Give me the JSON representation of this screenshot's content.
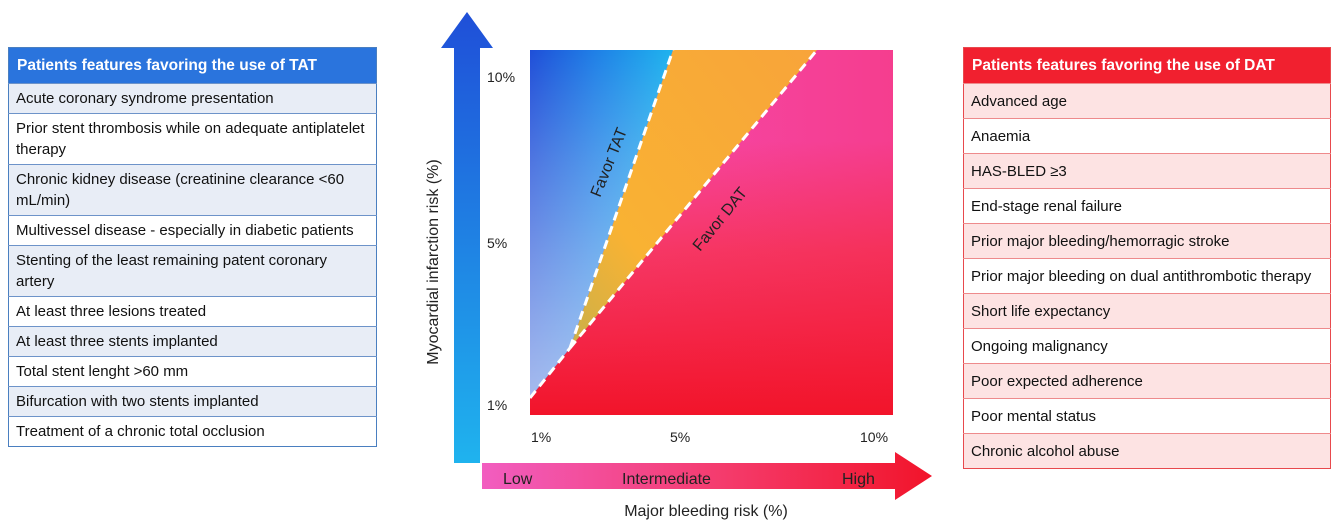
{
  "tat_panel": {
    "title": "Patients features favoring the use of TAT",
    "items": [
      "Acute coronary syndrome presentation",
      "Prior stent thrombosis while on adequate antiplatelet therapy",
      "Chronic kidney disease (creatinine clearance <60 mL/min)",
      "Multivessel disease - especially in diabetic patients",
      "Stenting of the least remaining patent coronary artery",
      "At least three lesions treated",
      "At least three stents implanted",
      "Total stent lenght >60 mm",
      "Bifurcation with two stents implanted",
      "Treatment of a chronic total occlusion"
    ]
  },
  "dat_panel": {
    "title": "Patients features favoring the use of DAT",
    "items": [
      "Advanced age",
      "Anaemia",
      "HAS-BLED ≥3",
      "End-stage renal failure",
      "Prior major bleeding/hemorragic stroke",
      "Prior major bleeding on dual antithrombotic therapy",
      "Short life expectancy",
      "Ongoing malignancy",
      "Poor expected adherence",
      "Poor mental status",
      "Chronic alcohol abuse"
    ]
  },
  "chart": {
    "y_axis_title": "Myocardial infarction risk (%)",
    "x_axis_title": "Major bleeding risk (%)",
    "y_ticks": [
      "10%",
      "5%",
      "1%"
    ],
    "x_ticks": [
      "1%",
      "5%",
      "10%"
    ],
    "x_arrow_labels": [
      "Low",
      "Intermediate",
      "High"
    ],
    "region_labels": {
      "tat": "Favor TAT",
      "dat": "Favor DAT"
    },
    "colors": {
      "tat_blue": "#1f4fd8",
      "tat_cyan": "#1fb3ee",
      "intermediate_orange": "#f9b233",
      "dat_pink": "#f64bb0",
      "dat_red": "#f2142a"
    }
  }
}
